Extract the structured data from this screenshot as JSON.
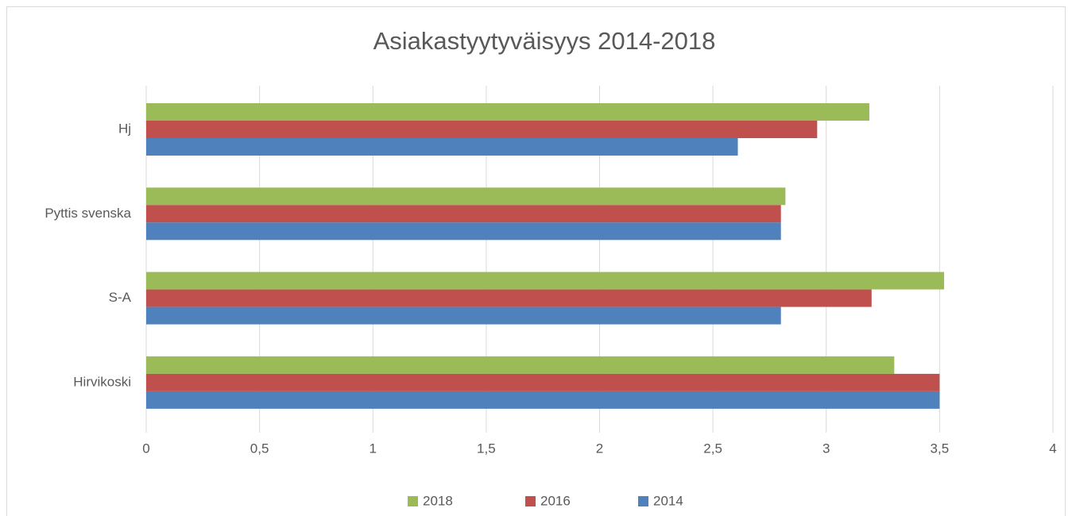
{
  "chart_data": {
    "type": "bar",
    "orientation": "horizontal",
    "title": "Asiakastyytyväisyys 2014-2018",
    "categories": [
      "Hirvikoski",
      "S-A",
      "Pyttis svenska",
      "Hj"
    ],
    "series": [
      {
        "name": "2018",
        "color": "#9bbb59",
        "values": [
          3.3,
          3.52,
          2.82,
          3.19
        ]
      },
      {
        "name": "2016",
        "color": "#c0504d",
        "values": [
          3.5,
          3.2,
          2.8,
          2.96
        ]
      },
      {
        "name": "2014",
        "color": "#4f81bd",
        "values": [
          3.5,
          2.8,
          2.8,
          2.61
        ]
      }
    ],
    "xlim": [
      0,
      4
    ],
    "xticks": [
      0,
      {
        "value": 0.5,
        "label": "0,5"
      },
      1,
      {
        "value": 1.5,
        "label": "1,5"
      },
      2,
      {
        "value": 2.5,
        "label": "2,5"
      },
      3,
      {
        "value": 3.5,
        "label": "3,5"
      },
      4
    ],
    "grid": true,
    "legend": "bottom"
  }
}
